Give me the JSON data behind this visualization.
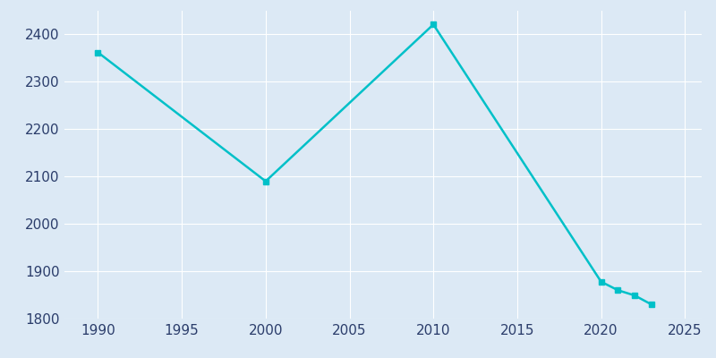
{
  "years": [
    1990,
    2000,
    2010,
    2020,
    2021,
    2022,
    2023
  ],
  "population": [
    2362,
    2090,
    2421,
    1878,
    1860,
    1849,
    1830
  ],
  "line_color": "#00c0c8",
  "marker_years": [
    1990,
    2000,
    2010,
    2020,
    2021,
    2022,
    2023
  ],
  "marker_pop": [
    2362,
    2090,
    2421,
    1878,
    1860,
    1849,
    1830
  ],
  "marker_color": "#00c0c8",
  "background_color": "#dce9f5",
  "ax_background_color": "#dce9f5",
  "grid_color": "#ffffff",
  "tick_color": "#2b3d6b",
  "xlim": [
    1988,
    2026
  ],
  "ylim": [
    1800,
    2450
  ],
  "xticks": [
    1990,
    1995,
    2000,
    2005,
    2010,
    2015,
    2020,
    2025
  ],
  "yticks": [
    1800,
    1900,
    2000,
    2100,
    2200,
    2300,
    2400
  ],
  "figsize": [
    8.0,
    4.0
  ],
  "dpi": 100
}
